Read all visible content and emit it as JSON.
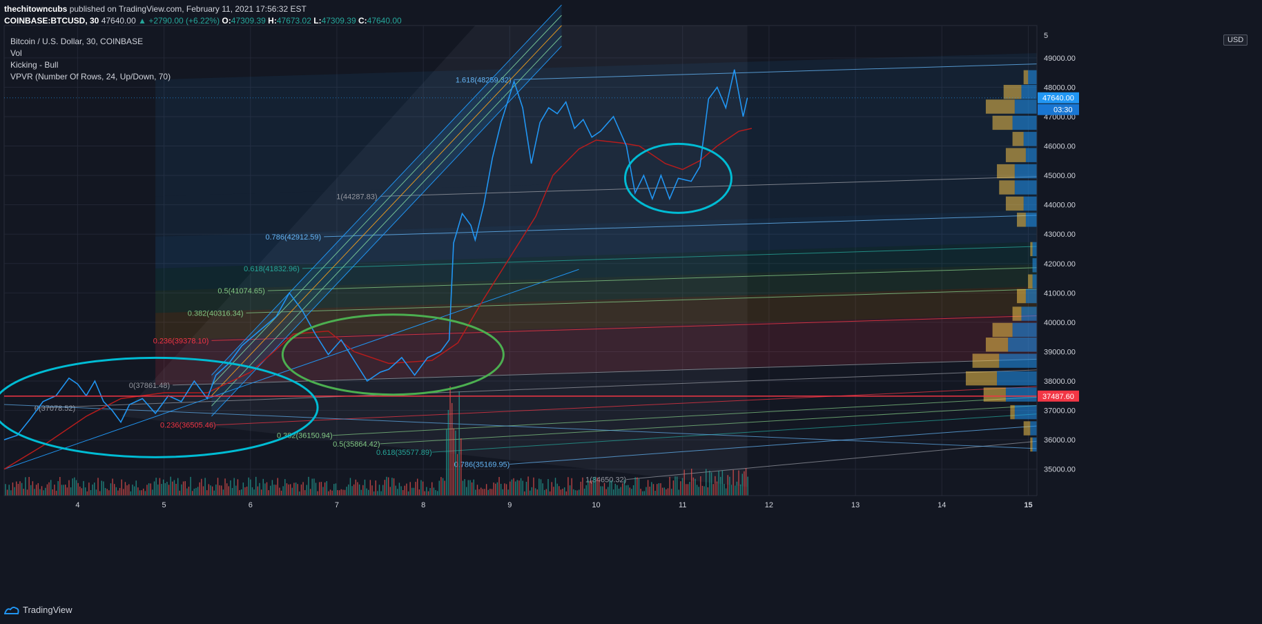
{
  "header": {
    "author": "thechitowncubs",
    "published": "published on TradingView.com, February 11, 2021 17:56:32 EST",
    "symbol": "COINBASE:BTCUSD, 30",
    "last": "47640.00",
    "change": "▲ +2790.00 (+6.22%)",
    "o_label": "O:",
    "o": "47309.39",
    "h_label": "H:",
    "h": "47673.02",
    "l_label": "L:",
    "l": "47309.39",
    "c_label": "C:",
    "c": "47640.00"
  },
  "legend": {
    "title": "Bitcoin / U.S. Dollar, 30, COINBASE",
    "vol": "Vol",
    "kicking": "Kicking - Bull",
    "vpvr": "VPVR (Number Of Rows, 24, Up/Down, 70)"
  },
  "currency_button": "USD",
  "footer": {
    "brand": "TradingView",
    "logo_icon": "tradingview-logo-icon"
  },
  "colors": {
    "background": "#131722",
    "price_line": "#2196f3",
    "ma_line": "#b71c1c",
    "circle_cyan": "#00bcd4",
    "circle_green": "#4caf50",
    "vpvr_up": "#2196f3",
    "vpvr_down": "#f0c14b",
    "hline_red": "#f23645"
  },
  "chart_data": {
    "type": "line",
    "title": "Bitcoin / U.S. Dollar, 30, COINBASE",
    "xlabel": "",
    "ylabel": "",
    "x_ticks": [
      "4",
      "5",
      "6",
      "7",
      "8",
      "9",
      "10",
      "11",
      "12",
      "13",
      "14",
      "15"
    ],
    "x_range": [
      3.15,
      15.1
    ],
    "y_ticks": [
      35000,
      36000,
      37000,
      38000,
      39000,
      40000,
      41000,
      42000,
      43000,
      44000,
      45000,
      46000,
      47000,
      48000,
      49000
    ],
    "y_tick_labels": [
      "35000.00",
      "36000.00",
      "37000.00",
      "38000.00",
      "39000.00",
      "40000.00",
      "41000.00",
      "42000.00",
      "43000.00",
      "44000.00",
      "45000.00",
      "46000.00",
      "47000.00",
      "48000.00",
      "49000.00"
    ],
    "ylim": [
      34100,
      50100
    ],
    "top_partial_tick": "5",
    "price_marker": {
      "value": 47640,
      "label": "47640.00",
      "countdown": "03:30"
    },
    "hline": {
      "value": 37487.6,
      "label": "37487.60"
    },
    "series": [
      {
        "values": [
          [
            3.15,
            36000
          ],
          [
            3.3,
            36150
          ],
          [
            3.45,
            36700
          ],
          [
            3.6,
            37300
          ],
          [
            3.75,
            37500
          ],
          [
            3.9,
            38100
          ],
          [
            4.0,
            37900
          ],
          [
            4.1,
            37500
          ],
          [
            4.2,
            38000
          ],
          [
            4.3,
            37300
          ],
          [
            4.4,
            37000
          ],
          [
            4.5,
            36600
          ],
          [
            4.6,
            37200
          ],
          [
            4.75,
            37400
          ],
          [
            4.9,
            36900
          ],
          [
            5.05,
            37500
          ],
          [
            5.2,
            37300
          ],
          [
            5.35,
            38000
          ],
          [
            5.5,
            37400
          ],
          [
            5.6,
            38200
          ],
          [
            5.75,
            38600
          ],
          [
            5.9,
            39200
          ],
          [
            6.1,
            39700
          ],
          [
            6.3,
            40200
          ],
          [
            6.45,
            41000
          ],
          [
            6.6,
            40400
          ],
          [
            6.75,
            39600
          ],
          [
            6.9,
            38900
          ],
          [
            7.05,
            39400
          ],
          [
            7.2,
            38700
          ],
          [
            7.35,
            38000
          ],
          [
            7.5,
            38300
          ],
          [
            7.6,
            38400
          ],
          [
            7.75,
            38800
          ],
          [
            7.9,
            38200
          ],
          [
            8.05,
            38800
          ],
          [
            8.2,
            39000
          ],
          [
            8.3,
            39400
          ],
          [
            8.35,
            42700
          ],
          [
            8.45,
            43700
          ],
          [
            8.55,
            43300
          ],
          [
            8.6,
            42800
          ],
          [
            8.7,
            44000
          ],
          [
            8.8,
            45600
          ],
          [
            8.9,
            46800
          ],
          [
            9.05,
            48200
          ],
          [
            9.15,
            47300
          ],
          [
            9.25,
            45400
          ],
          [
            9.35,
            46800
          ],
          [
            9.45,
            47300
          ],
          [
            9.55,
            47100
          ],
          [
            9.65,
            47500
          ],
          [
            9.75,
            46600
          ],
          [
            9.85,
            46900
          ],
          [
            9.95,
            46300
          ],
          [
            10.05,
            46500
          ],
          [
            10.2,
            47000
          ],
          [
            10.35,
            46000
          ],
          [
            10.45,
            44400
          ],
          [
            10.55,
            45000
          ],
          [
            10.65,
            44200
          ],
          [
            10.75,
            45000
          ],
          [
            10.85,
            44200
          ],
          [
            10.95,
            44900
          ],
          [
            11.1,
            44800
          ],
          [
            11.2,
            45300
          ],
          [
            11.3,
            47600
          ],
          [
            11.4,
            48000
          ],
          [
            11.5,
            47300
          ],
          [
            11.6,
            48600
          ],
          [
            11.65,
            47800
          ],
          [
            11.7,
            47000
          ],
          [
            11.75,
            47640
          ]
        ]
      },
      {
        "values": [
          [
            3.15,
            35000
          ],
          [
            3.6,
            35800
          ],
          [
            4.1,
            36800
          ],
          [
            4.5,
            37400
          ],
          [
            5.0,
            37600
          ],
          [
            5.5,
            37600
          ],
          [
            6.0,
            38300
          ],
          [
            6.5,
            39600
          ],
          [
            6.9,
            39700
          ],
          [
            7.2,
            39000
          ],
          [
            7.6,
            38600
          ],
          [
            8.1,
            38700
          ],
          [
            8.4,
            39300
          ],
          [
            8.7,
            40800
          ],
          [
            9.0,
            42200
          ],
          [
            9.3,
            43600
          ],
          [
            9.5,
            45000
          ],
          [
            9.8,
            45900
          ],
          [
            10.0,
            46200
          ],
          [
            10.3,
            46100
          ],
          [
            10.5,
            46000
          ],
          [
            10.8,
            45400
          ],
          [
            11.0,
            45200
          ],
          [
            11.2,
            45500
          ],
          [
            11.4,
            46000
          ],
          [
            11.65,
            46500
          ],
          [
            11.8,
            46600
          ]
        ]
      }
    ],
    "volume": "bars along bottom; large green spike near x=8.3",
    "fib_retracement": [
      {
        "label": "0(37861.48)",
        "value": 37861.48
      },
      {
        "label": "0.236(39378.10)",
        "value": 39378.1
      },
      {
        "label": "0.382(40316.34)",
        "value": 40316.34
      },
      {
        "label": "0.5(41074.65)",
        "value": 41074.65
      },
      {
        "label": "0.618(41832.96)",
        "value": 41832.96
      },
      {
        "label": "0.786(42912.59)",
        "value": 42912.59
      },
      {
        "label": "1(44287.83)",
        "value": 44287.83
      },
      {
        "label": "1.618(48259.32)",
        "value": 48259.32
      }
    ],
    "fib_lower": [
      {
        "label": "0(37078.52)",
        "value": 37078.52
      },
      {
        "label": "0.236(36505.46)",
        "value": 36505.46
      },
      {
        "label": "0.382(36150.94)",
        "value": 36150.94
      },
      {
        "label": "0.5(35864.42)",
        "value": 35864.42
      },
      {
        "label": "0.618(35577.89)",
        "value": 35577.89
      },
      {
        "label": "0.786(35169.95)",
        "value": 35169.95
      },
      {
        "label": "1(34650.32)",
        "value": 34650.32
      }
    ]
  }
}
